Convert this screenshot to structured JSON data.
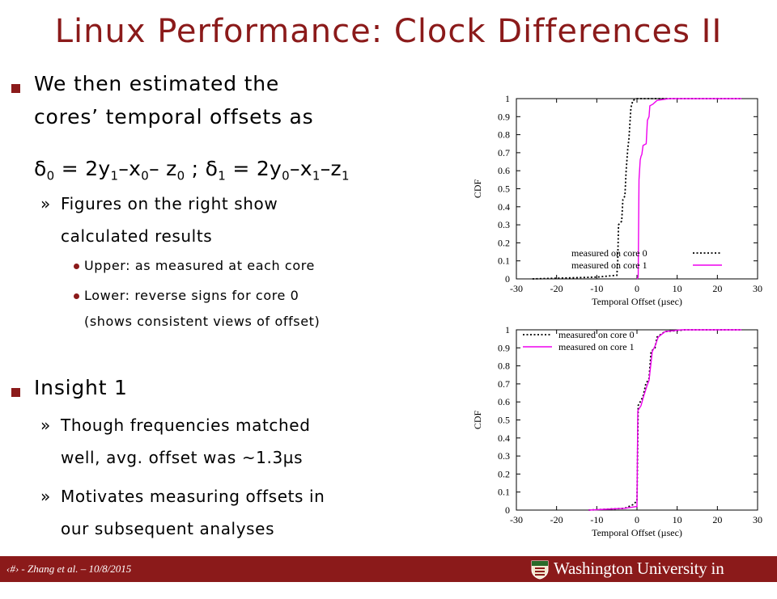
{
  "slide": {
    "title": "Linux Performance: Clock Differences II",
    "bullet1": {
      "line1": "We then estimated the",
      "line2": "cores’ temporal offsets as",
      "formula": {
        "d": "δ",
        "s0": "0",
        "eq1": " = 2y",
        "s1": "1",
        "m1": "–x",
        "s2": "0",
        "m2": "– z",
        "s3": "0",
        "sep": " ; δ",
        "s4": "1",
        "eq2": " = 2y",
        "s5": "0",
        "m3": "–x",
        "s6": "1",
        "m4": "–z",
        "s7": "1"
      },
      "sub1_line1": "Figures on the right show",
      "sub1_line2": "calculated results",
      "sub1_a": "Upper: as measured at each core",
      "sub1_b_line1": "Lower: reverse signs for core 0",
      "sub1_b_line2": "(shows consistent views of offset)"
    },
    "bullet2": {
      "label": "Insight 1",
      "sub1_line1": "Though frequencies matched",
      "sub1_line2": "well, avg. offset was ~1.3µs",
      "sub2_line1": "Motivates measuring offsets in",
      "sub2_line2": "our subsequent analyses"
    },
    "sub_marker": "»",
    "footer": {
      "page": "‹#›",
      "text": " - Zhang et al. – 10/8/2015",
      "university": "Washington University in St.Louis"
    },
    "colors": {
      "accent": "#8b1a1a",
      "core1": "#ee00ee",
      "core0": "#000000"
    }
  },
  "chart_data": [
    {
      "type": "line",
      "xlabel": "Temporal Offset (µsec)",
      "ylabel": "CDF",
      "xlim": [
        -30,
        30
      ],
      "ylim": [
        0,
        1
      ],
      "xticks": [
        -30,
        -20,
        -10,
        0,
        10,
        20,
        30
      ],
      "yticks": [
        0,
        0.1,
        0.2,
        0.3,
        0.4,
        0.5,
        0.6,
        0.7,
        0.8,
        0.9,
        1
      ],
      "legend": "bottom-right",
      "series": [
        {
          "name": "measured on core 0",
          "style": "dotted",
          "points": [
            [
              -26,
              0
            ],
            [
              -10,
              0.01
            ],
            [
              -5,
              0.02
            ],
            [
              -4.8,
              0.1
            ],
            [
              -4.6,
              0.3
            ],
            [
              -3.8,
              0.32
            ],
            [
              -3.5,
              0.44
            ],
            [
              -3,
              0.46
            ],
            [
              -2.7,
              0.6
            ],
            [
              -2.3,
              0.72
            ],
            [
              -2,
              0.78
            ],
            [
              -1.5,
              0.95
            ],
            [
              -1,
              0.99
            ],
            [
              0,
              1
            ],
            [
              26,
              1
            ]
          ]
        },
        {
          "name": "measured on core 1",
          "style": "solid",
          "points": [
            [
              0,
              0
            ],
            [
              0.3,
              0.01
            ],
            [
              0.5,
              0.55
            ],
            [
              0.8,
              0.66
            ],
            [
              1,
              0.68
            ],
            [
              1.2,
              0.69
            ],
            [
              1.5,
              0.74
            ],
            [
              2.3,
              0.75
            ],
            [
              2.6,
              0.88
            ],
            [
              3,
              0.9
            ],
            [
              3.2,
              0.96
            ],
            [
              4,
              0.97
            ],
            [
              5,
              0.99
            ],
            [
              8,
              1
            ],
            [
              26,
              1
            ]
          ]
        }
      ]
    },
    {
      "type": "line",
      "xlabel": "Temporal Offset (µsec)",
      "ylabel": "CDF",
      "xlim": [
        -30,
        30
      ],
      "ylim": [
        0,
        1
      ],
      "xticks": [
        -30,
        -20,
        -10,
        0,
        10,
        20,
        30
      ],
      "yticks": [
        0,
        0.1,
        0.2,
        0.3,
        0.4,
        0.5,
        0.6,
        0.7,
        0.8,
        0.9,
        1
      ],
      "legend": "top-left",
      "series": [
        {
          "name": "measured on core 0",
          "style": "dotted",
          "points": [
            [
              -12,
              0
            ],
            [
              -3,
              0.01
            ],
            [
              -1,
              0.03
            ],
            [
              0,
              0.05
            ],
            [
              0.3,
              0.58
            ],
            [
              0.8,
              0.6
            ],
            [
              1.5,
              0.63
            ],
            [
              2.2,
              0.7
            ],
            [
              3,
              0.73
            ],
            [
              3.5,
              0.88
            ],
            [
              4.5,
              0.9
            ],
            [
              5,
              0.96
            ],
            [
              7,
              0.99
            ],
            [
              12,
              1
            ],
            [
              26,
              1
            ]
          ]
        },
        {
          "name": "measured on core 1",
          "style": "solid",
          "points": [
            [
              -12,
              0
            ],
            [
              -3,
              0.01
            ],
            [
              0,
              0.02
            ],
            [
              0.2,
              0.55
            ],
            [
              1,
              0.58
            ],
            [
              1.5,
              0.62
            ],
            [
              2.5,
              0.69
            ],
            [
              3,
              0.72
            ],
            [
              3.8,
              0.88
            ],
            [
              4.5,
              0.91
            ],
            [
              5.3,
              0.96
            ],
            [
              7,
              0.99
            ],
            [
              11,
              1
            ],
            [
              26,
              1
            ]
          ]
        }
      ]
    }
  ]
}
